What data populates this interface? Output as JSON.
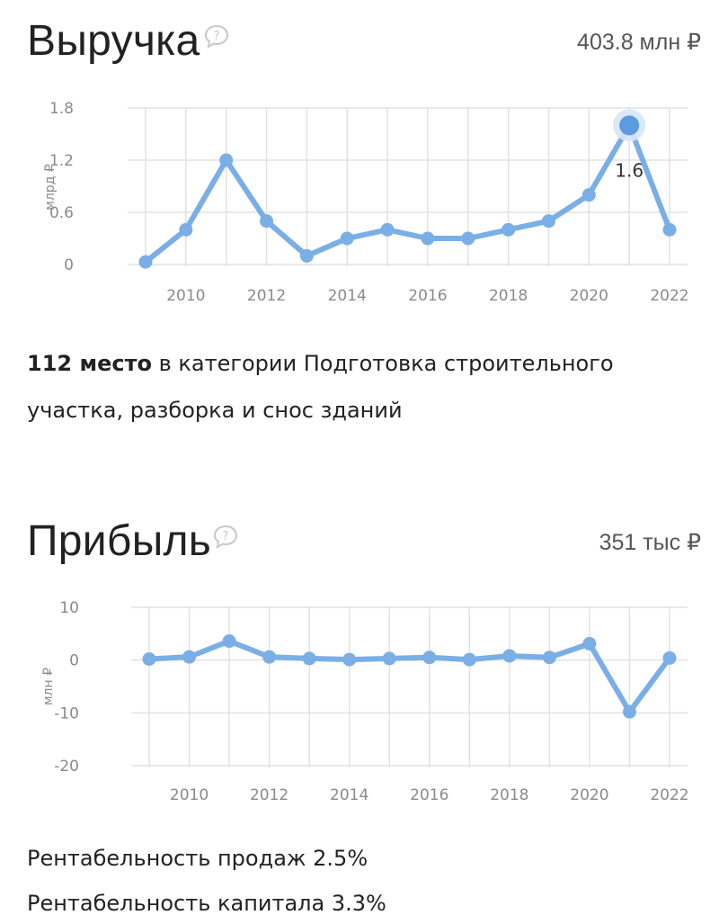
{
  "colors": {
    "title": "#b5452a",
    "line": "#7aaee6",
    "grid": "#e2e2e2",
    "axis_text": "#8a8a8a"
  },
  "revenue": {
    "title": "Выручка",
    "total": "403.8 млн ₽",
    "icon": "question-bubble-icon",
    "rank_number": "112 место",
    "rank_text": " в категории Подготовка строительного участка, разборка и снос зданий"
  },
  "profit": {
    "title": "Прибыль",
    "total": "351 тыс ₽",
    "icon": "question-bubble-icon",
    "sales_profitability": "Рентабельность продаж 2.5%",
    "capital_profitability": "Рентабельность капитала 3.3%"
  },
  "chart_data": [
    {
      "type": "line",
      "ylabel": "млрд ₽",
      "x": [
        2009,
        2010,
        2011,
        2012,
        2013,
        2014,
        2015,
        2016,
        2017,
        2018,
        2019,
        2020,
        2021,
        2022
      ],
      "y": [
        0.03,
        0.4,
        1.2,
        0.5,
        0.1,
        0.3,
        0.4,
        0.3,
        0.3,
        0.4,
        0.5,
        0.8,
        1.6,
        0.4
      ],
      "xticks": [
        "2010",
        "2012",
        "2014",
        "2016",
        "2018",
        "2020",
        "2022"
      ],
      "yticks": [
        "0",
        "0.6",
        "1.2",
        "1.8"
      ],
      "ylim": [
        0,
        1.8
      ],
      "highlight": {
        "x": 2021,
        "label": "1.6"
      }
    },
    {
      "type": "line",
      "ylabel": "млн ₽",
      "x": [
        2009,
        2010,
        2011,
        2012,
        2013,
        2014,
        2015,
        2016,
        2017,
        2018,
        2019,
        2020,
        2021,
        2022
      ],
      "y": [
        0.2,
        0.6,
        3.6,
        0.6,
        0.3,
        0.1,
        0.3,
        0.5,
        0.1,
        0.8,
        0.5,
        3.1,
        -9.8,
        0.4
      ],
      "xticks": [
        "2010",
        "2012",
        "2014",
        "2016",
        "2018",
        "2020",
        "2022"
      ],
      "yticks": [
        "-20",
        "-10",
        "0",
        "10"
      ],
      "ylim": [
        -20,
        10
      ]
    }
  ]
}
